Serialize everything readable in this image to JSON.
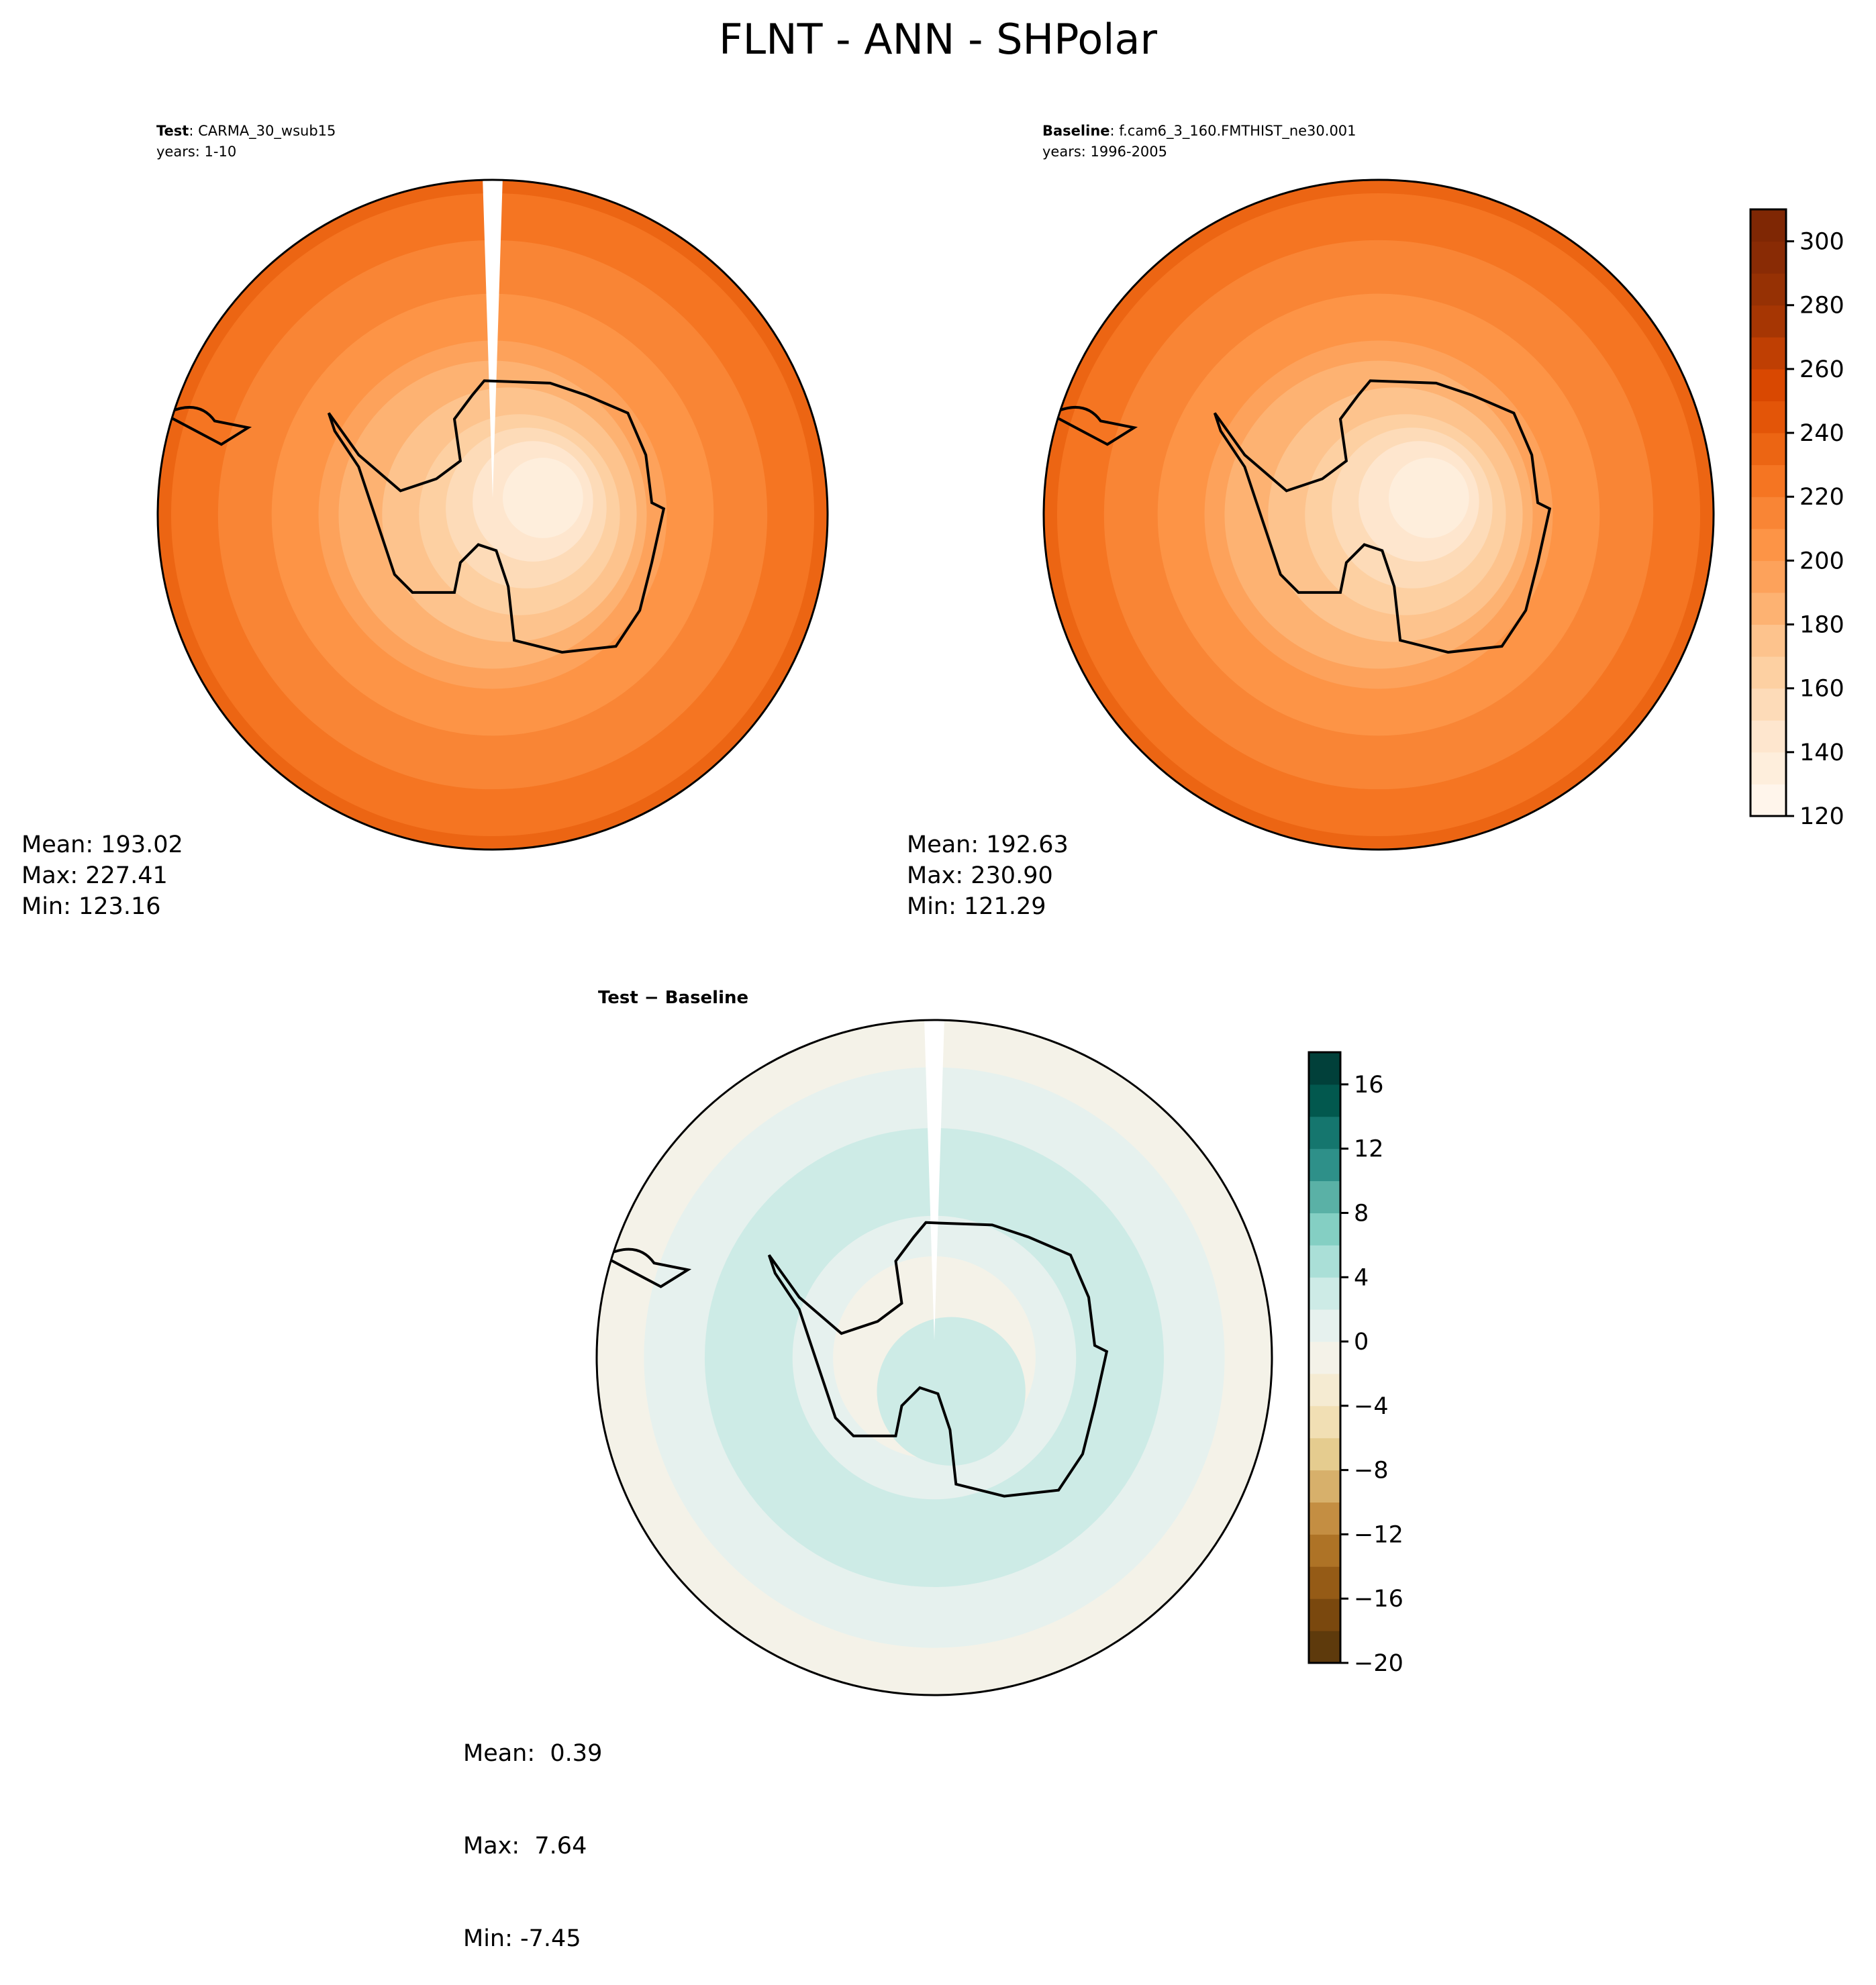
{
  "title": "FLNT - ANN - SHPolar",
  "colors": {
    "coastline": "#000000",
    "outline": "#000000"
  },
  "chart_data": [
    {
      "type": "heatmap",
      "projection": "south-polar-stereographic",
      "panel": "test",
      "header_label": "Test",
      "header_value": ": CARMA_30_wsub15",
      "years": "years: 1-10",
      "stats": {
        "mean": "Mean: 193.02",
        "max": "Max: 227.41",
        "min": "Min: 123.16"
      },
      "colormap": "Oranges",
      "levels": [
        120,
        130,
        140,
        150,
        160,
        170,
        180,
        190,
        200,
        210,
        220,
        230,
        240,
        250,
        260,
        270,
        280,
        290,
        300,
        310
      ],
      "has_missing_wedge": true
    },
    {
      "type": "heatmap",
      "projection": "south-polar-stereographic",
      "panel": "baseline",
      "header_label": "Baseline",
      "header_value": ": f.cam6_3_160.FMTHIST_ne30.001",
      "years": "years: 1996-2005",
      "stats": {
        "mean": "Mean: 192.63",
        "max": "Max: 230.90",
        "min": "Min: 121.29"
      },
      "colormap": "Oranges",
      "levels": [
        120,
        130,
        140,
        150,
        160,
        170,
        180,
        190,
        200,
        210,
        220,
        230,
        240,
        250,
        260,
        270,
        280,
        290,
        300,
        310
      ],
      "colorbar": {
        "ticks": [
          "120",
          "140",
          "160",
          "180",
          "200",
          "220",
          "240",
          "260",
          "280",
          "300"
        ],
        "range": [
          120,
          310
        ]
      },
      "has_missing_wedge": false
    },
    {
      "type": "heatmap",
      "projection": "south-polar-stereographic",
      "panel": "difference",
      "header_label": "Test − Baseline",
      "stats": {
        "mean": "Mean:  0.39",
        "max": "Max:  7.64",
        "min": "Min: -7.45"
      },
      "colormap": "BrBG",
      "levels": [
        -20,
        -18,
        -16,
        -14,
        -12,
        -10,
        -8,
        -6,
        -4,
        -2,
        0,
        2,
        4,
        6,
        8,
        10,
        12,
        14,
        16,
        18
      ],
      "colorbar": {
        "ticks": [
          "−20",
          "−16",
          "−12",
          "−8",
          "−4",
          "0",
          "4",
          "8",
          "12",
          "16"
        ],
        "range": [
          -20,
          18
        ]
      },
      "has_missing_wedge": true
    }
  ]
}
